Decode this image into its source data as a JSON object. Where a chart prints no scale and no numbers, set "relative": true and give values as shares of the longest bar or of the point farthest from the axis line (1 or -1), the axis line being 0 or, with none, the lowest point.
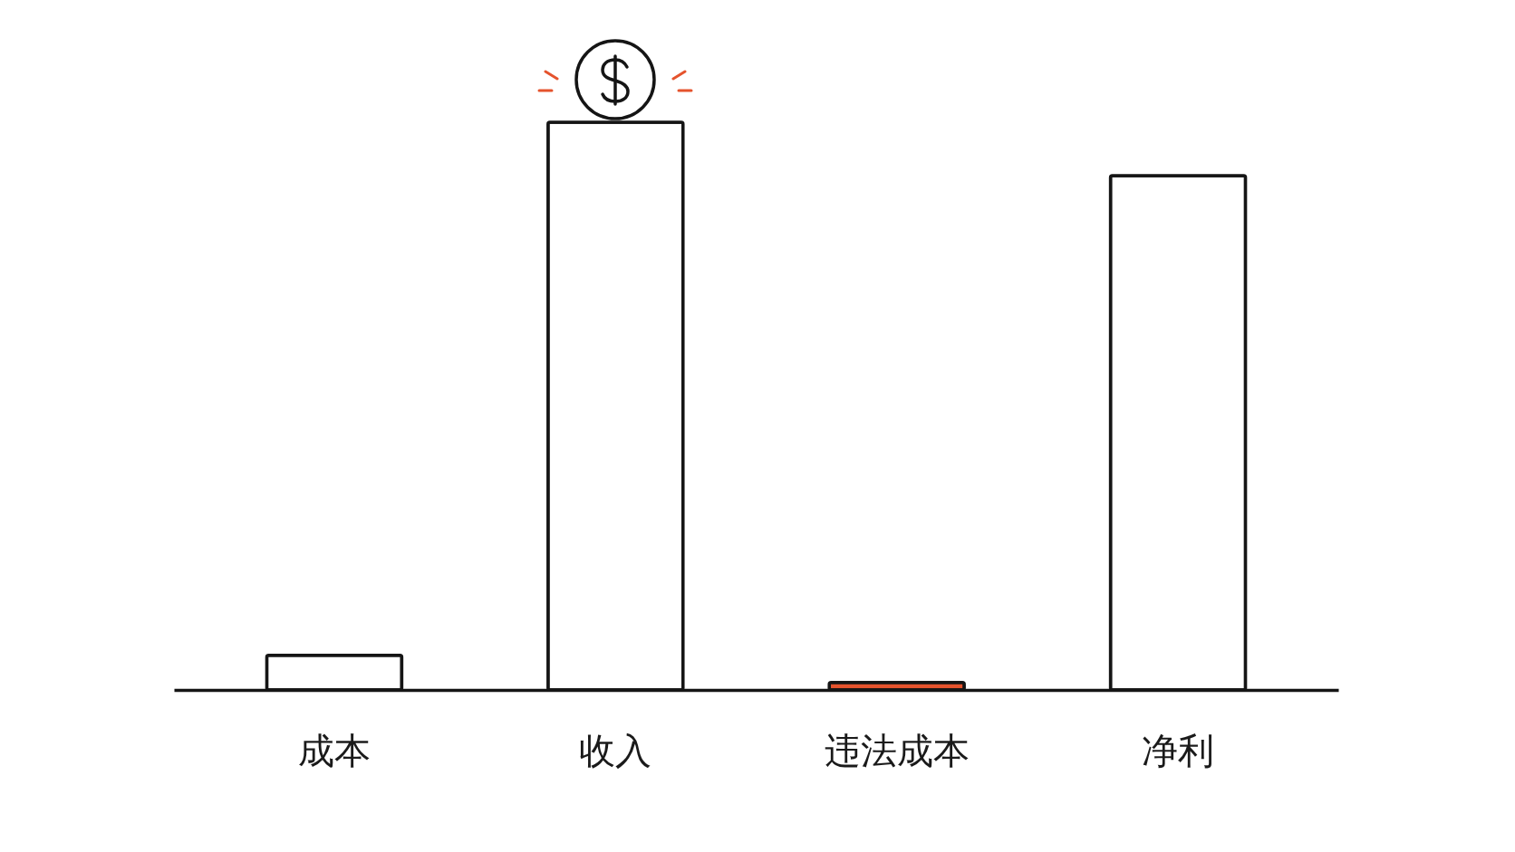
{
  "chart_data": {
    "type": "bar",
    "relative": true,
    "categories": [
      "成本",
      "收入",
      "违法成本",
      "净利"
    ],
    "values": [
      0.061,
      1,
      0.013,
      0.906
    ],
    "colors": [
      "#ffffff",
      "#ffffff",
      "#e5532d",
      "#ffffff"
    ]
  }
}
